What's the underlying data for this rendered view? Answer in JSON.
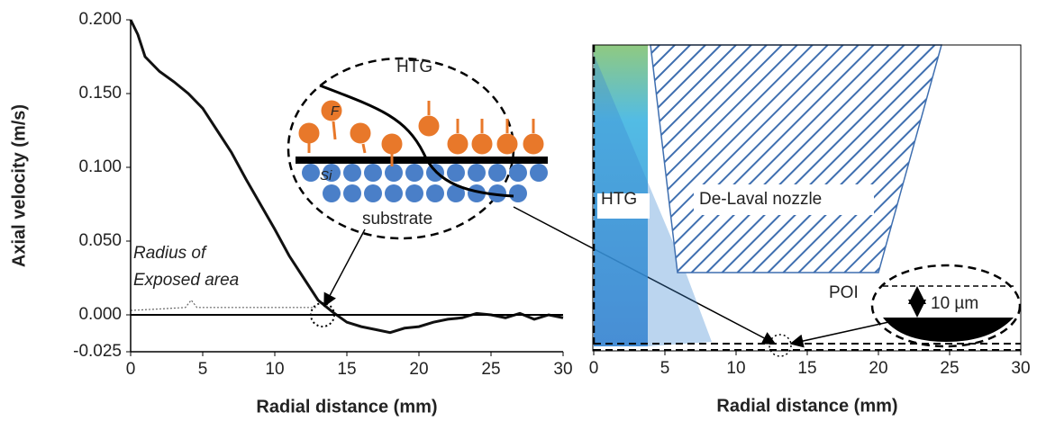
{
  "chart_data": [
    {
      "type": "line",
      "xlabel": "Radial distance (mm)",
      "ylabel": "Axial velocity (m/s)",
      "xlim": [
        0,
        30
      ],
      "xticks": [
        0,
        5,
        10,
        15,
        20,
        25,
        30
      ],
      "ylim": [
        -0.025,
        0.2
      ],
      "yticks": [
        {
          "value": -0.025,
          "label": "-0.025"
        },
        {
          "value": 0,
          "label": "0.000"
        },
        {
          "value": 0.05,
          "label": "0.050"
        },
        {
          "value": 0.1,
          "label": "0.100"
        },
        {
          "value": 0.15,
          "label": "0.150"
        },
        {
          "value": 0.2,
          "label": "0.200"
        }
      ],
      "series": [
        {
          "color": "#111111",
          "x": [
            0,
            0.5,
            1,
            2,
            3,
            4,
            5,
            6,
            7,
            8,
            9,
            10,
            11,
            12,
            13,
            14,
            15,
            16,
            17,
            18,
            19,
            20,
            21,
            22,
            23,
            24,
            25,
            26,
            27,
            28,
            29,
            30
          ],
          "values": [
            0.2,
            0.19,
            0.175,
            0.165,
            0.158,
            0.15,
            0.14,
            0.125,
            0.11,
            0.092,
            0.075,
            0.058,
            0.04,
            0.025,
            0.01,
            0.002,
            -0.005,
            -0.008,
            -0.01,
            -0.012,
            -0.009,
            -0.008,
            -0.005,
            -0.003,
            -0.002,
            0.001,
            0,
            -0.002,
            0.001,
            -0.003,
            0,
            -0.002
          ]
        },
        {
          "color": "#666666",
          "x": [
            0,
            2,
            3.8,
            4.2,
            4.6,
            8,
            13
          ],
          "values": [
            0.003,
            0.004,
            0.005,
            0.01,
            0.005,
            0.005,
            0.005
          ]
        }
      ],
      "annotations": [
        "Radius of",
        "Exposed area",
        "HTG",
        "F",
        "Si",
        "substrate"
      ]
    },
    {
      "type": "flow",
      "xlabel": "Radial distance (mm)",
      "xlim": [
        0,
        30
      ],
      "xticks": [
        0,
        5,
        10,
        15,
        20,
        25,
        30
      ],
      "annotations": [
        "HTG",
        "De-Laval nozzle",
        "POI",
        "10 µm"
      ]
    }
  ]
}
